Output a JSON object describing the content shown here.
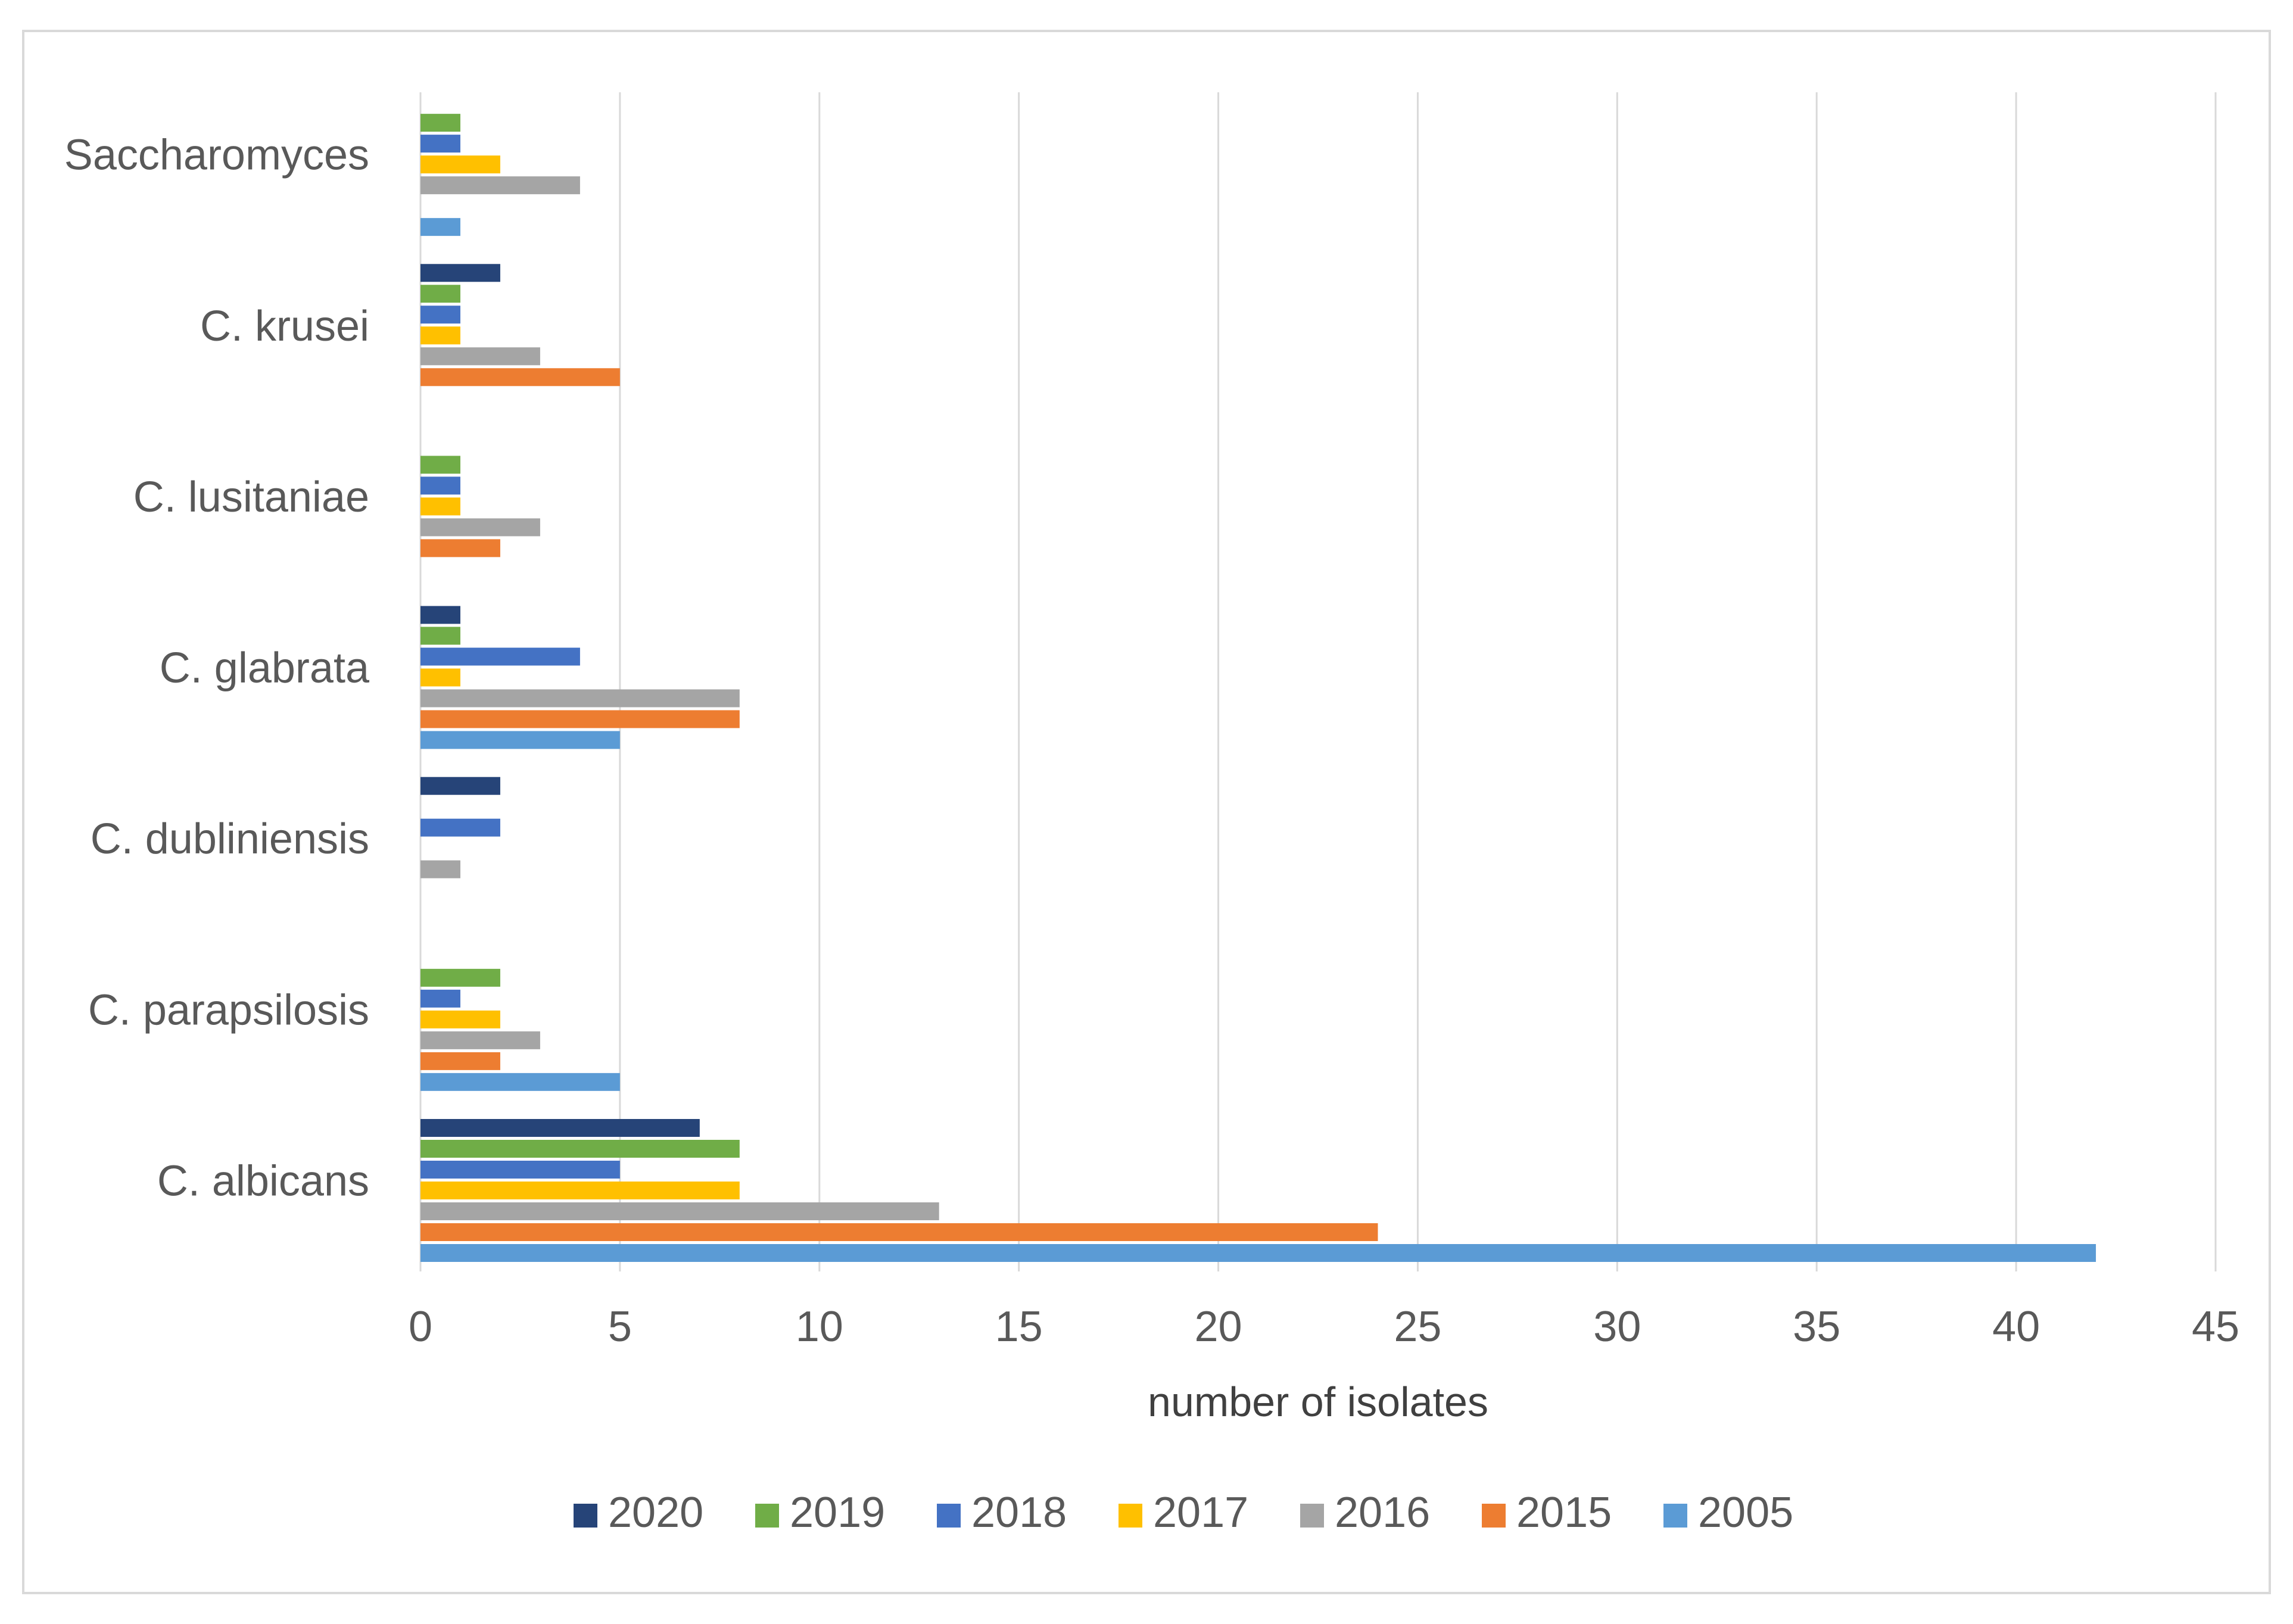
{
  "chart_data": {
    "type": "bar",
    "orientation": "horizontal",
    "categories": [
      "C. albicans",
      "C. parapsilosis",
      "C. dubliniensis",
      "C. glabrata",
      "C. lusitaniae",
      "C. krusei",
      "Saccharomyces"
    ],
    "series": [
      {
        "name": "2020",
        "color": "#264478",
        "values": [
          7,
          0,
          2,
          1,
          0,
          2,
          0
        ]
      },
      {
        "name": "2019",
        "color": "#70ad47",
        "values": [
          8,
          2,
          0,
          1,
          1,
          1,
          1
        ]
      },
      {
        "name": "2018",
        "color": "#4472c4",
        "values": [
          5,
          1,
          2,
          4,
          1,
          1,
          1
        ]
      },
      {
        "name": "2017",
        "color": "#ffc000",
        "values": [
          8,
          2,
          0,
          1,
          1,
          1,
          2
        ]
      },
      {
        "name": "2016",
        "color": "#a5a5a5",
        "values": [
          13,
          3,
          1,
          8,
          3,
          3,
          4
        ]
      },
      {
        "name": "2015",
        "color": "#ed7d31",
        "values": [
          24,
          2,
          0,
          8,
          2,
          5,
          0
        ]
      },
      {
        "name": "2005",
        "color": "#5b9bd5",
        "values": [
          42,
          5,
          0,
          5,
          0,
          0,
          1
        ]
      }
    ],
    "xlabel": "number of isolates",
    "ylabel": "",
    "xlim": [
      0,
      45
    ],
    "xticks": [
      "0",
      "5",
      "10",
      "15",
      "20",
      "25",
      "30",
      "35",
      "40",
      "45"
    ],
    "grid": "vertical",
    "legend": "bottom",
    "legend_order": [
      "2020",
      "2019",
      "2018",
      "2017",
      "2016",
      "2015",
      "2005"
    ]
  }
}
